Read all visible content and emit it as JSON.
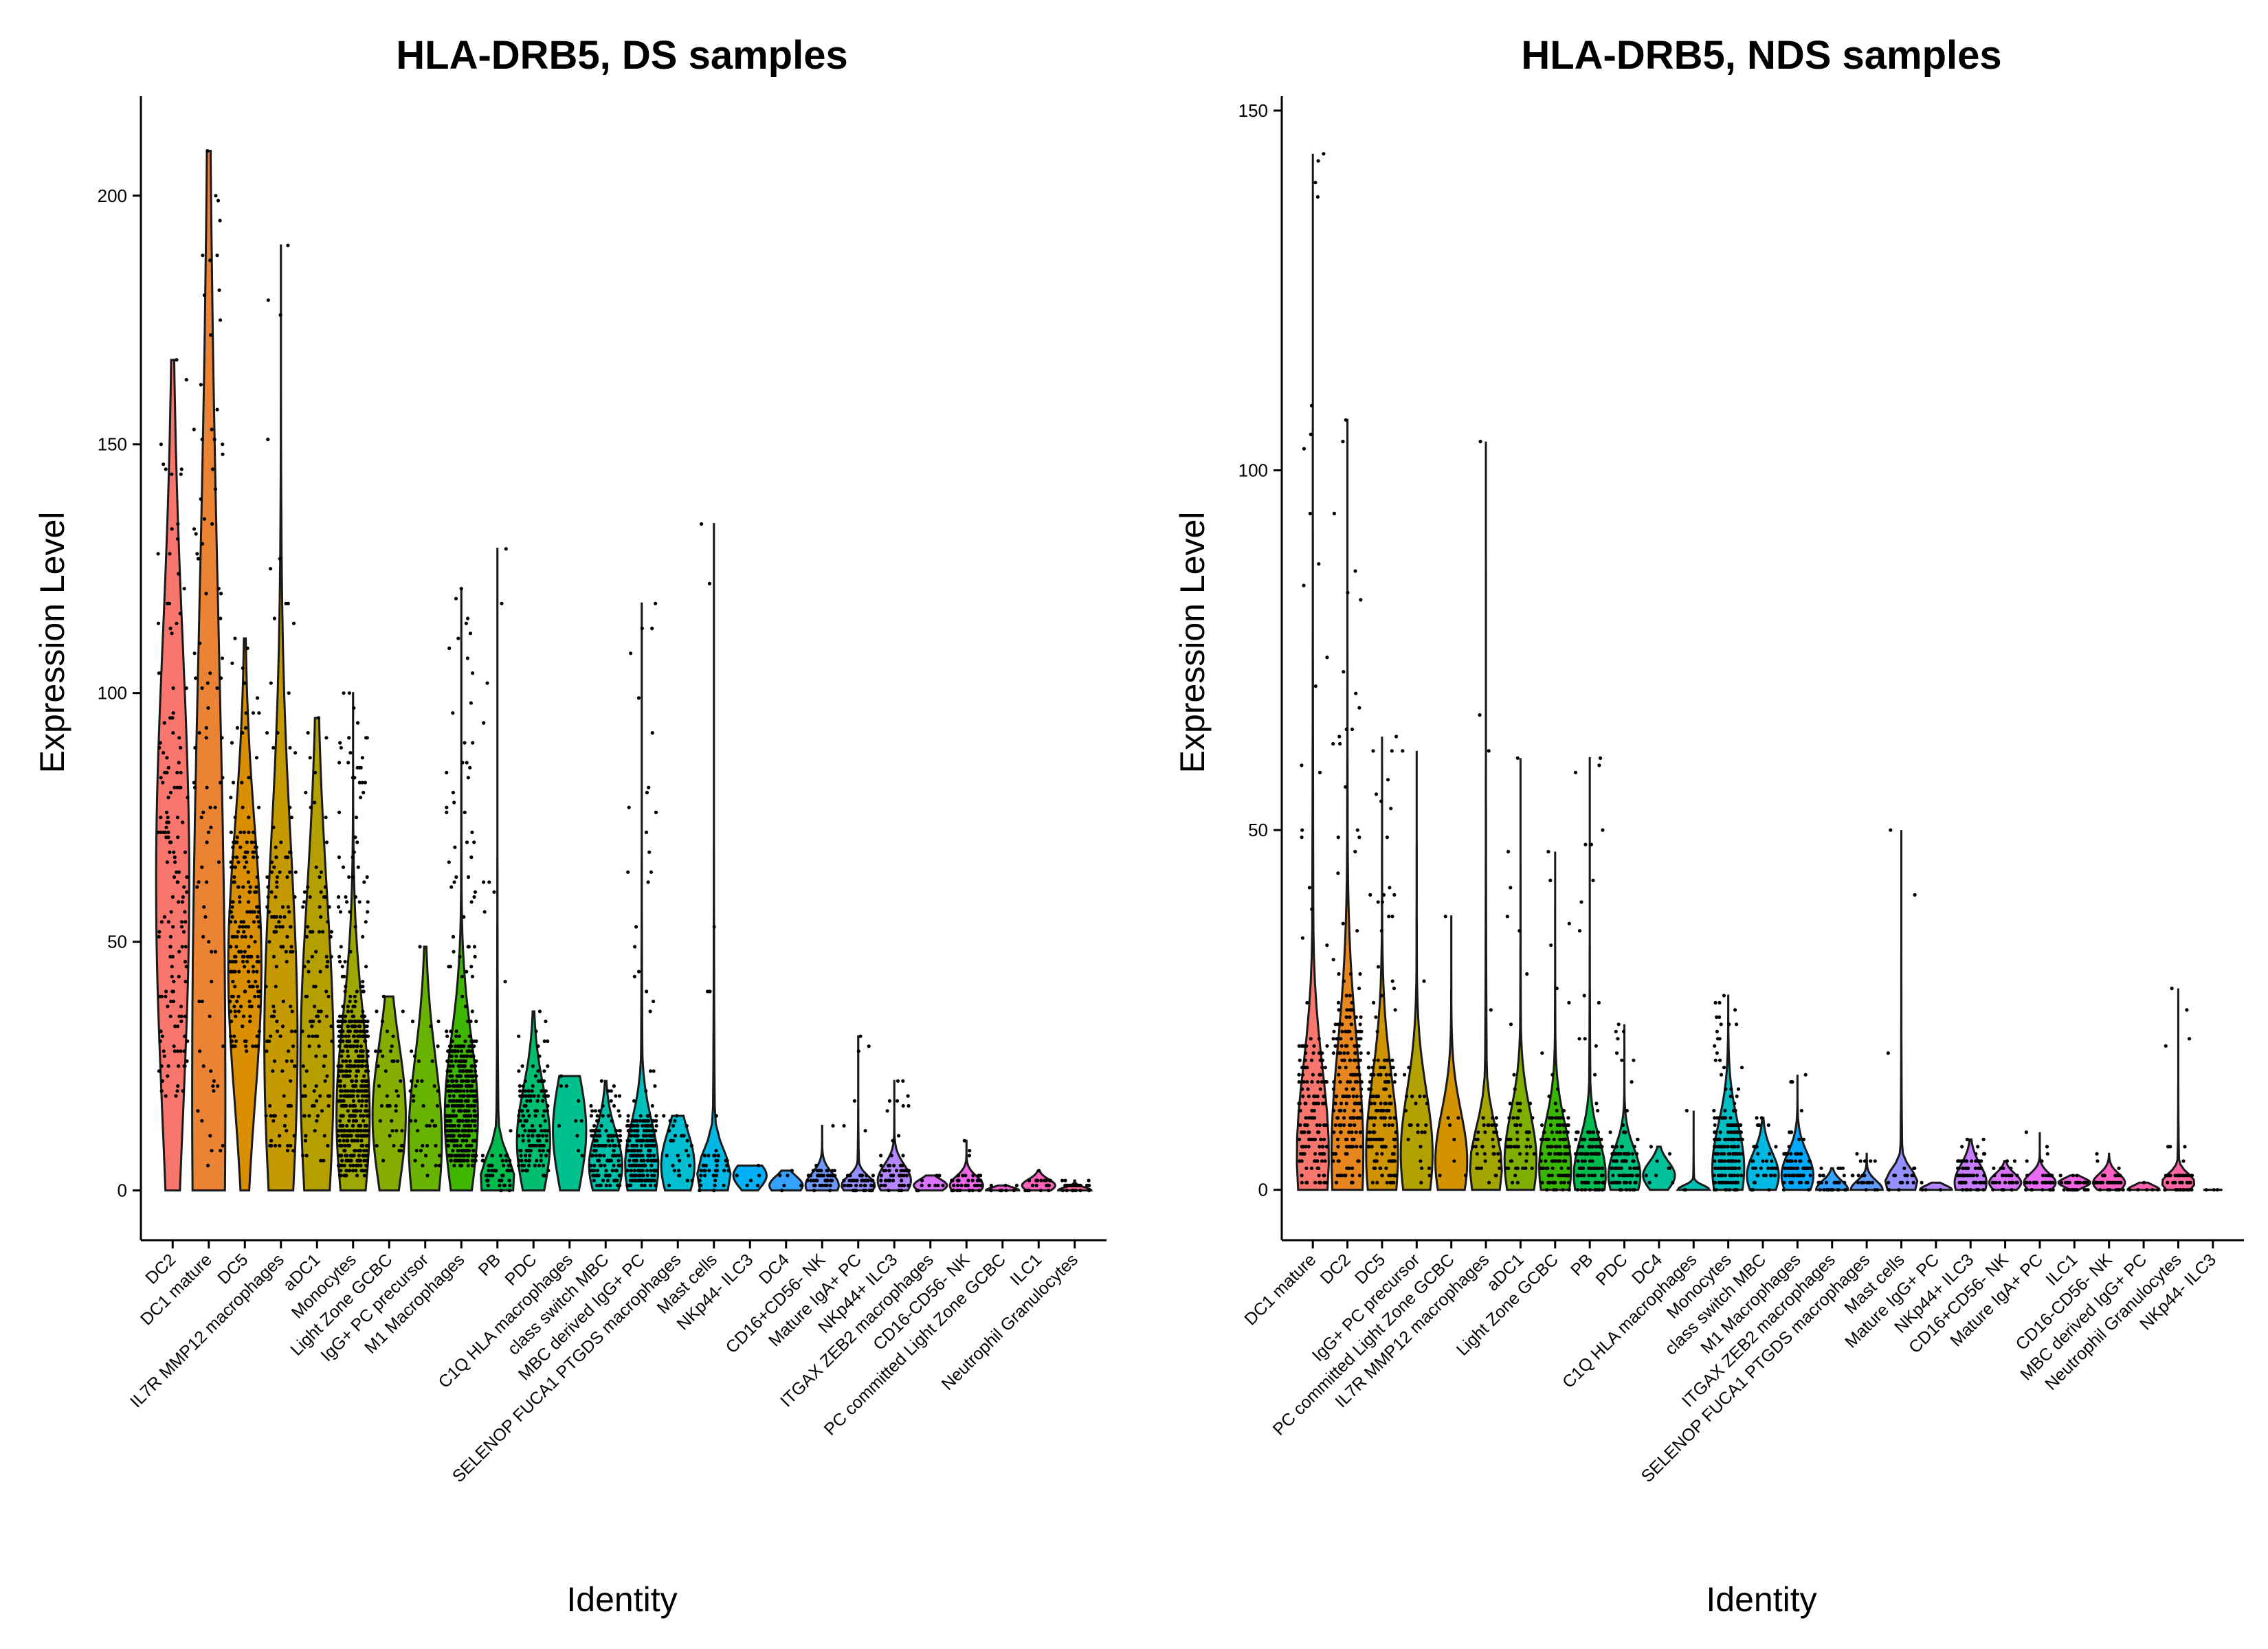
{
  "chart_data": [
    {
      "type": "violin",
      "title": "HLA-DRB5, DS samples",
      "xlabel": "Identity",
      "ylabel": "Expression Level",
      "ylim": [
        -10,
        220
      ],
      "yticks": [
        0,
        50,
        100,
        150,
        200
      ],
      "grid": false,
      "legend": "none",
      "categories": [
        {
          "name": "DC2",
          "max": 167,
          "median": 62,
          "q_low": 18,
          "q_high": 95,
          "color": "#F8766D",
          "n": 160
        },
        {
          "name": "DC1 mature",
          "max": 209,
          "median": 20,
          "q_low": 5,
          "q_high": 150,
          "color": "#EB8335",
          "n": 90
        },
        {
          "name": "DC5",
          "max": 111,
          "median": 45,
          "q_low": 28,
          "q_high": 72,
          "color": "#DA8F00",
          "n": 200
        },
        {
          "name": "IL7R MMP12 macrophages",
          "max": 190,
          "median": 30,
          "q_low": 8,
          "q_high": 70,
          "color": "#C49A00",
          "n": 130
        },
        {
          "name": "aDC1",
          "max": 95,
          "median": 25,
          "q_low": 5,
          "q_high": 60,
          "color": "#B3A000",
          "n": 110
        },
        {
          "name": "Monocytes",
          "max": 100,
          "median": 15,
          "q_low": 3,
          "q_high": 35,
          "color": "#9DA700",
          "n": 500
        },
        {
          "name": "Light Zone GCBC",
          "max": 39,
          "median": 15,
          "q_low": 5,
          "q_high": 28,
          "color": "#84AD00",
          "n": 40
        },
        {
          "name": "IgG+ PC precursor",
          "max": 49,
          "median": 10,
          "q_low": 3,
          "q_high": 30,
          "color": "#68B200",
          "n": 40
        },
        {
          "name": "M1 Macrophages",
          "max": 121,
          "median": 15,
          "q_low": 5,
          "q_high": 30,
          "color": "#3FB700",
          "n": 450
        },
        {
          "name": "PB",
          "max": 129,
          "median": 2,
          "q_low": 0,
          "q_high": 8,
          "color": "#00BB4E",
          "n": 60
        },
        {
          "name": "PDC",
          "max": 36,
          "median": 10,
          "q_low": 3,
          "q_high": 20,
          "color": "#00BE70",
          "n": 150
        },
        {
          "name": "C1Q HLA macrophages",
          "max": 23,
          "median": 12,
          "q_low": 4,
          "q_high": 22,
          "color": "#00C08E",
          "n": 10
        },
        {
          "name": "class switch MBC",
          "max": 22,
          "median": 5,
          "q_low": 1,
          "q_high": 12,
          "color": "#00C1A7",
          "n": 150
        },
        {
          "name": "MBC derived IgG+ PC",
          "max": 118,
          "median": 5,
          "q_low": 1,
          "q_high": 15,
          "color": "#00C0BC",
          "n": 250
        },
        {
          "name": "SELENOP FUCA1 PTGDS macrophages",
          "max": 15,
          "median": 5,
          "q_low": 1,
          "q_high": 12,
          "color": "#00BDD0",
          "n": 30
        },
        {
          "name": "Mast cells",
          "max": 134,
          "median": 3,
          "q_low": 0,
          "q_high": 8,
          "color": "#00B8E3",
          "n": 40
        },
        {
          "name": "NKp44- ILC3",
          "max": 5,
          "median": 3,
          "q_low": 0,
          "q_high": 4,
          "color": "#00B0F6",
          "n": 6
        },
        {
          "name": "DC4",
          "max": 4,
          "median": 1,
          "q_low": 0,
          "q_high": 3,
          "color": "#35A2FF",
          "n": 6
        },
        {
          "name": "CD16+CD56- NK",
          "max": 13,
          "median": 1,
          "q_low": 0,
          "q_high": 4,
          "color": "#6F98FF",
          "n": 50
        },
        {
          "name": "Mature IgA+ PC",
          "max": 31,
          "median": 1,
          "q_low": 0,
          "q_high": 3,
          "color": "#9590FF",
          "n": 50
        },
        {
          "name": "NKp44+ ILC3",
          "max": 22,
          "median": 2,
          "q_low": 0,
          "q_high": 5,
          "color": "#B385FF",
          "n": 60
        },
        {
          "name": "ITGAX ZEB2 macrophages",
          "max": 3,
          "median": 1,
          "q_low": 0,
          "q_high": 2,
          "color": "#DB72FB",
          "n": 10
        },
        {
          "name": "CD16-CD56- NK",
          "max": 10,
          "median": 1,
          "q_low": 0,
          "q_high": 3,
          "color": "#EF67EB",
          "n": 40
        },
        {
          "name": "PC committed Light Zone GCBC",
          "max": 1,
          "median": 0,
          "q_low": 0,
          "q_high": 1,
          "color": "#FA62D6",
          "n": 8
        },
        {
          "name": "ILC1",
          "max": 4,
          "median": 1,
          "q_low": 0,
          "q_high": 2,
          "color": "#FF62BC",
          "n": 20
        },
        {
          "name": "Neutrophil Granulocytes",
          "max": 2,
          "median": 0,
          "q_low": 0,
          "q_high": 1,
          "color": "#FF699D",
          "n": 30
        }
      ]
    },
    {
      "type": "violin",
      "title": "HLA-DRB5, NDS samples",
      "xlabel": "Identity",
      "ylabel": "Expression Level",
      "ylim": [
        -7,
        152
      ],
      "yticks": [
        0,
        50,
        100,
        150
      ],
      "grid": false,
      "legend": "none",
      "categories": [
        {
          "name": "DC1 mature",
          "max": 144,
          "median": 5,
          "q_low": 1,
          "q_high": 20,
          "color": "#F8766D",
          "n": 160
        },
        {
          "name": "DC2",
          "max": 107,
          "median": 5,
          "q_low": 1,
          "q_high": 25,
          "color": "#E7851E",
          "n": 200
        },
        {
          "name": "DC5",
          "max": 63,
          "median": 5,
          "q_low": 1,
          "q_high": 18,
          "color": "#D09400",
          "n": 160
        },
        {
          "name": "IgG+ PC precursor",
          "max": 61,
          "median": 5,
          "q_low": 1,
          "q_high": 15,
          "color": "#B2A100",
          "n": 25
        },
        {
          "name": "PC committed Light Zone GCBC",
          "max": 38,
          "median": 4,
          "q_low": 1,
          "q_high": 12,
          "color": "#D39200",
          "n": 8
        },
        {
          "name": "IL7R MMP12 macrophages",
          "max": 104,
          "median": 3,
          "q_low": 1,
          "q_high": 10,
          "color": "#A3A500",
          "n": 40
        },
        {
          "name": "aDC1",
          "max": 60,
          "median": 4,
          "q_low": 1,
          "q_high": 12,
          "color": "#7DAE00",
          "n": 60
        },
        {
          "name": "Light Zone GCBC",
          "max": 47,
          "median": 3,
          "q_low": 0,
          "q_high": 10,
          "color": "#39B600",
          "n": 120
        },
        {
          "name": "PB",
          "max": 60,
          "median": 2,
          "q_low": 0,
          "q_high": 8,
          "color": "#00BB4E",
          "n": 130
        },
        {
          "name": "PDC",
          "max": 23,
          "median": 2,
          "q_low": 0,
          "q_high": 6,
          "color": "#00BF7D",
          "n": 100
        },
        {
          "name": "DC4",
          "max": 6,
          "median": 2,
          "q_low": 1,
          "q_high": 4,
          "color": "#00C19A",
          "n": 10
        },
        {
          "name": "C1Q HLA macrophages",
          "max": 11,
          "median": 0,
          "q_low": 0,
          "q_high": 0,
          "color": "#00C0B4",
          "n": 3
        },
        {
          "name": "Monocytes",
          "max": 27,
          "median": 3,
          "q_low": 0,
          "q_high": 10,
          "color": "#00BFC4",
          "n": 200
        },
        {
          "name": "class switch MBC",
          "max": 10,
          "median": 2,
          "q_low": 0,
          "q_high": 5,
          "color": "#00B9E3",
          "n": 40
        },
        {
          "name": "M1 Macrophages",
          "max": 16,
          "median": 2,
          "q_low": 0,
          "q_high": 5,
          "color": "#00A9FF",
          "n": 80
        },
        {
          "name": "ITGAX ZEB2 macrophages",
          "max": 3,
          "median": 0,
          "q_low": 0,
          "q_high": 2,
          "color": "#35A2FF",
          "n": 30
        },
        {
          "name": "SELENOP FUCA1 PTGDS macrophages",
          "max": 5,
          "median": 0,
          "q_low": 0,
          "q_high": 2,
          "color": "#619CFF",
          "n": 20
        },
        {
          "name": "Mast cells",
          "max": 50,
          "median": 1,
          "q_low": 0,
          "q_high": 3,
          "color": "#9590FF",
          "n": 20
        },
        {
          "name": "Mature IgG+ PC",
          "max": 1,
          "median": 0,
          "q_low": 0,
          "q_high": 0,
          "color": "#B385FF",
          "n": 4
        },
        {
          "name": "NKp44+ ILC3",
          "max": 7,
          "median": 1,
          "q_low": 0,
          "q_high": 4,
          "color": "#C77CFF",
          "n": 70
        },
        {
          "name": "CD16+CD56- NK",
          "max": 4,
          "median": 1,
          "q_low": 0,
          "q_high": 2,
          "color": "#DB72FB",
          "n": 30
        },
        {
          "name": "Mature IgA+ PC",
          "max": 8,
          "median": 1,
          "q_low": 0,
          "q_high": 2,
          "color": "#E76BF3",
          "n": 40
        },
        {
          "name": "ILC1",
          "max": 2,
          "median": 1,
          "q_low": 0,
          "q_high": 1,
          "color": "#F564E3",
          "n": 30
        },
        {
          "name": "CD16-CD56- NK",
          "max": 5,
          "median": 1,
          "q_low": 0,
          "q_high": 2,
          "color": "#FF61C3",
          "n": 40
        },
        {
          "name": "MBC derived IgG+ PC",
          "max": 1,
          "median": 0,
          "q_low": 0,
          "q_high": 0,
          "color": "#FF64B0",
          "n": 6
        },
        {
          "name": "Neutrophil Granulocytes",
          "max": 28,
          "median": 1,
          "q_low": 0,
          "q_high": 2,
          "color": "#FF67A4",
          "n": 50
        },
        {
          "name": "NKp44- ILC3",
          "max": 0,
          "median": 0,
          "q_low": 0,
          "q_high": 0,
          "color": "#FF6C91",
          "n": 3
        }
      ]
    }
  ]
}
